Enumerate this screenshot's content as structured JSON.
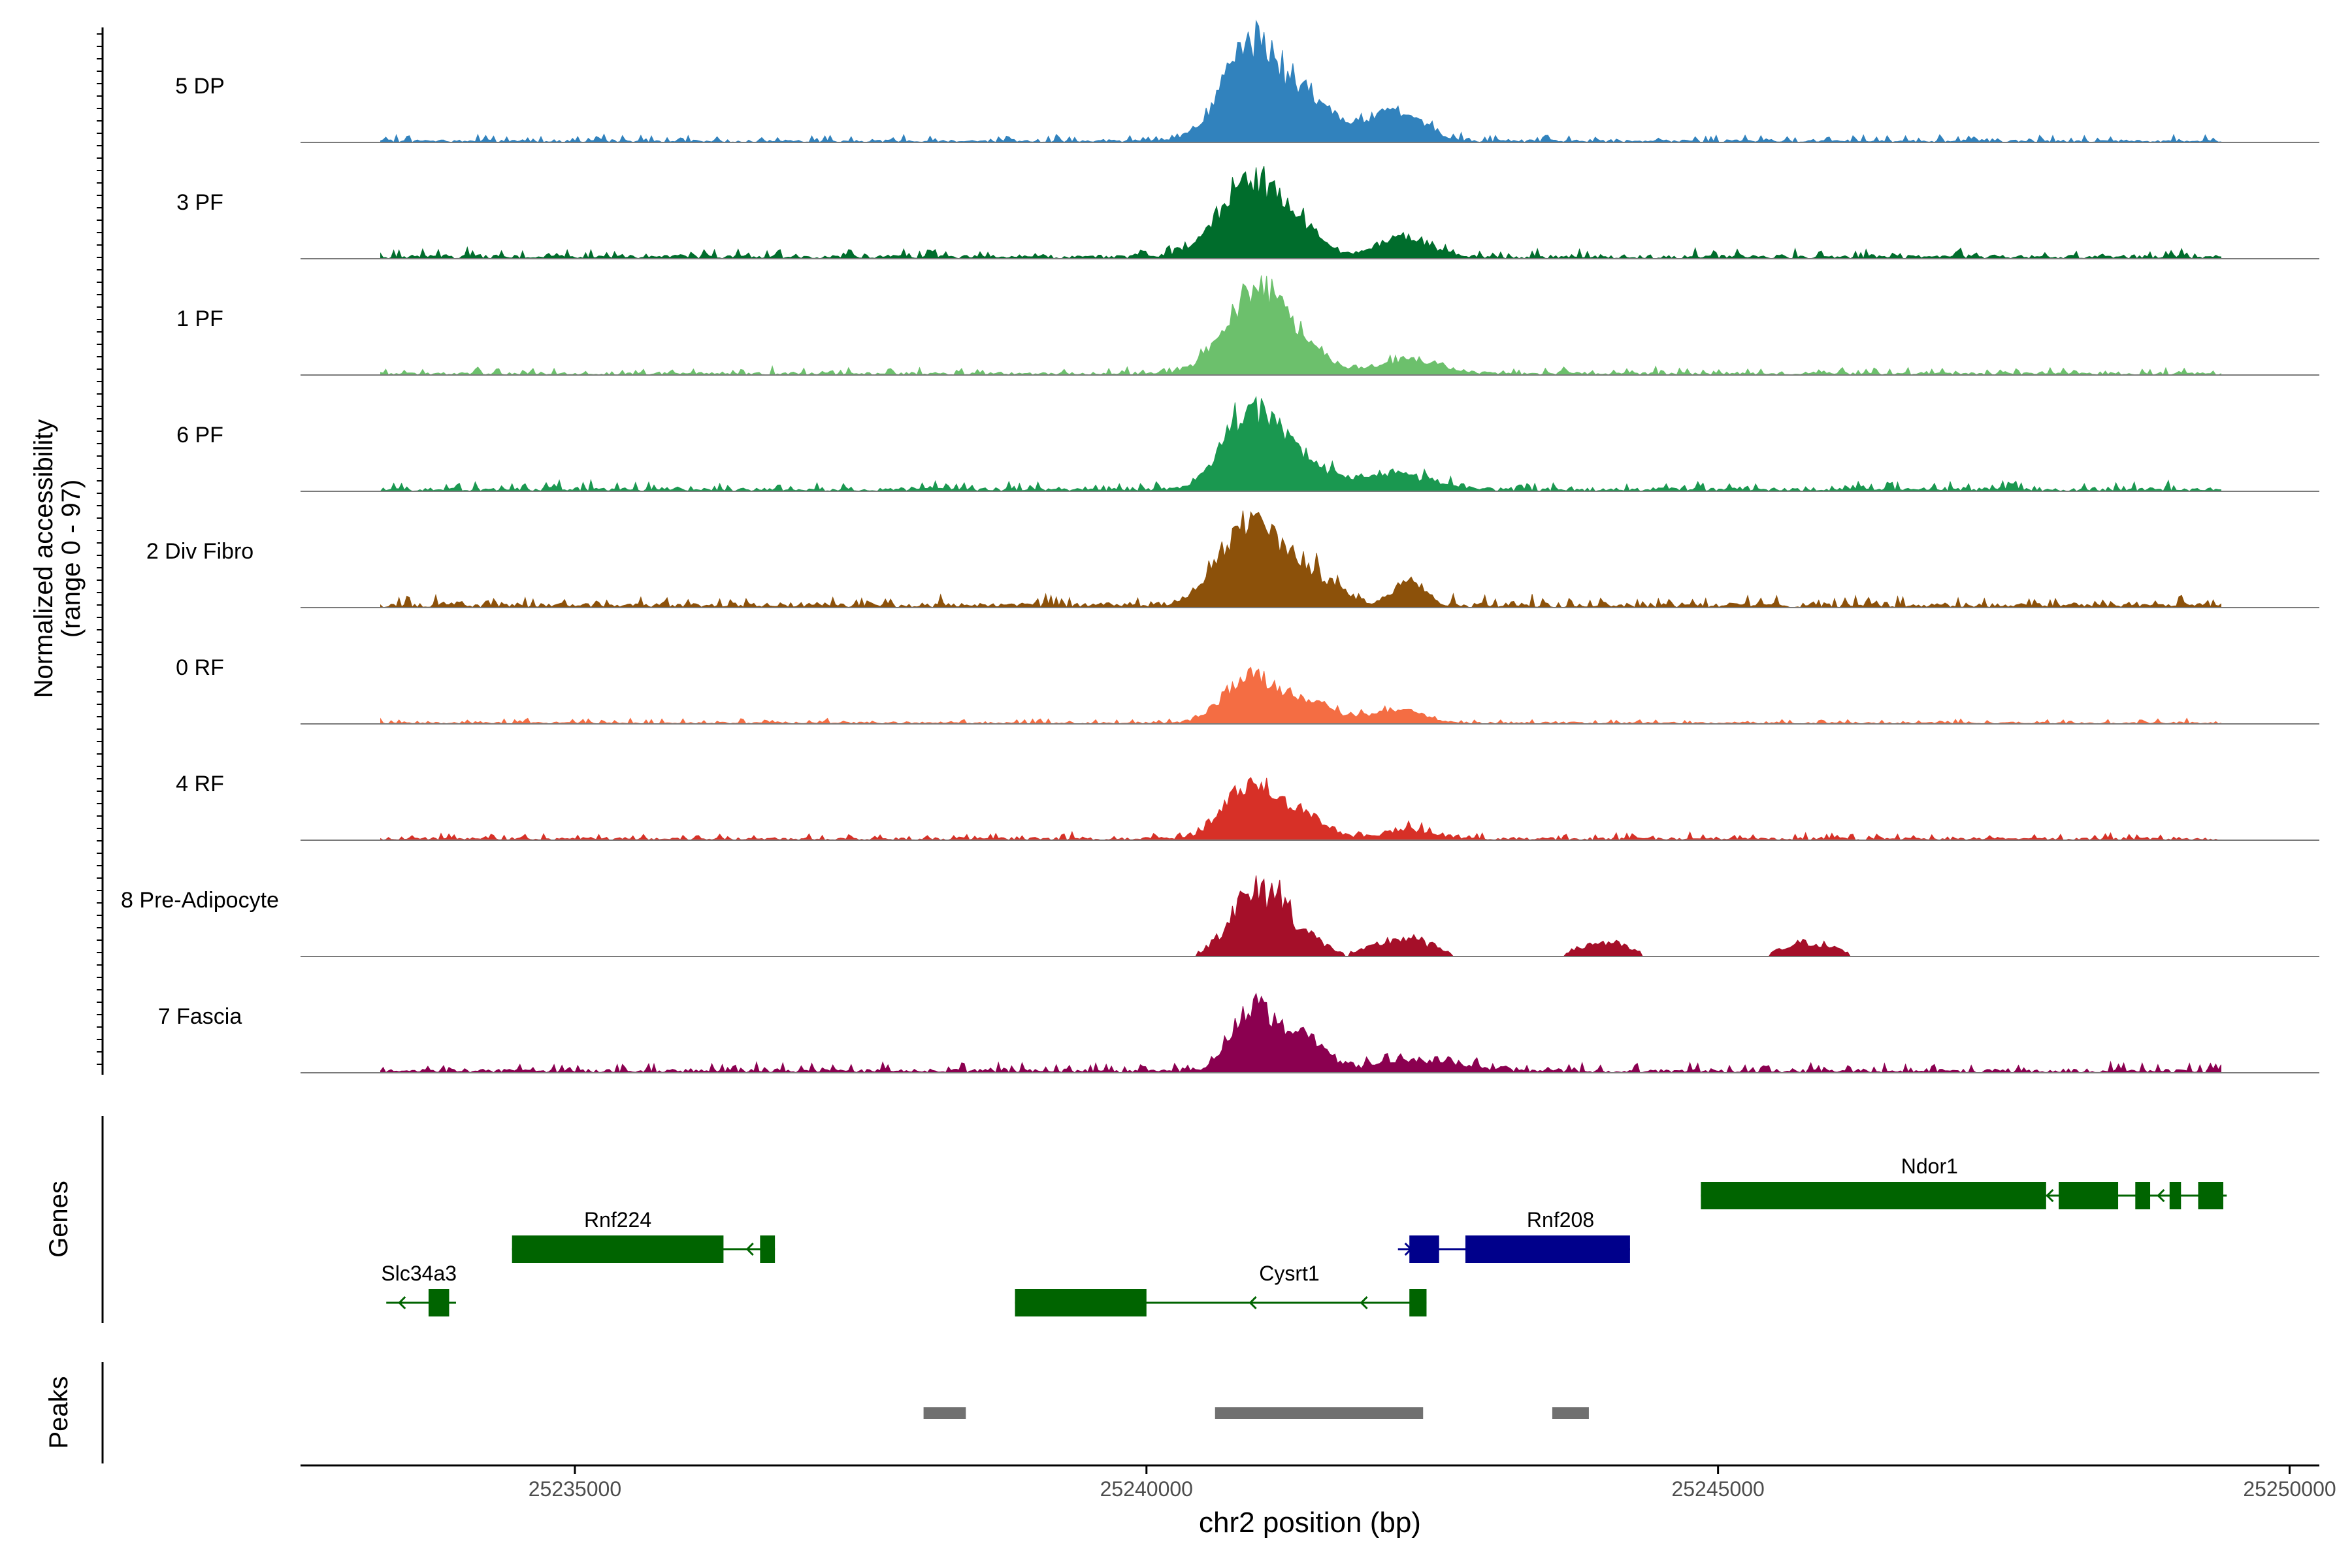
{
  "chart_data": {
    "type": "area",
    "title": "",
    "xlabel": "chr2 position (bp)",
    "xlim": [
      25232600,
      25250260
    ],
    "x_ticks": [
      25235000,
      25240000,
      25245000,
      25250000
    ],
    "x_tick_labels": [
      "25235000",
      "25240000",
      "25245000",
      "25250000"
    ],
    "coverage_panel": {
      "ylabel_line1": "Normalized accessibility",
      "ylabel_line2": "(range 0 - 97)",
      "range": [
        0,
        97
      ],
      "tracks": [
        {
          "name": "5 DP",
          "color": "#3182bd",
          "peaks": [
            [
              25240950,
              88,
              380
            ],
            [
              25241500,
              28,
              250
            ],
            [
              25241950,
              14,
              200
            ],
            [
              25242250,
              23,
              280
            ]
          ],
          "baseline": 3
        },
        {
          "name": "3 PF",
          "color": "#006d2c",
          "peaks": [
            [
              25240900,
              65,
              380
            ],
            [
              25241350,
              20,
              280
            ],
            [
              25242250,
              18,
              300
            ]
          ],
          "baseline": 4
        },
        {
          "name": "1 PF",
          "color": "#6cc06c",
          "peaks": [
            [
              25240970,
              75,
              380
            ],
            [
              25241400,
              12,
              300
            ],
            [
              25242300,
              13,
              350
            ]
          ],
          "baseline": 3
        },
        {
          "name": "6 PF",
          "color": "#1a9850",
          "peaks": [
            [
              25240870,
              58,
              320
            ],
            [
              25241250,
              30,
              380
            ],
            [
              25242150,
              14,
              450
            ]
          ],
          "baseline": 4
        },
        {
          "name": "2 Div Fibro",
          "color": "#8c510a",
          "peaks": [
            [
              25240920,
              75,
              380
            ],
            [
              25241500,
              22,
              300
            ],
            [
              25242300,
              25,
              180
            ]
          ],
          "baseline": 5
        },
        {
          "name": "0 RF",
          "color": "#f46d43",
          "peaks": [
            [
              25240900,
              40,
              320
            ],
            [
              25241400,
              18,
              350
            ],
            [
              25242200,
              12,
              300
            ]
          ],
          "baseline": 2
        },
        {
          "name": "4 RF",
          "color": "#d73027",
          "peaks": [
            [
              25240900,
              48,
              300
            ],
            [
              25241350,
              22,
              300
            ],
            [
              25242300,
              8,
              300
            ]
          ],
          "baseline": 3
        },
        {
          "name": "8 Pre-Adipocyte",
          "color": "#a50f29",
          "sparse": true,
          "peaks": [
            [
              25240850,
              50,
              250
            ],
            [
              25241150,
              50,
              200
            ],
            [
              25241450,
              15,
              200
            ],
            [
              25242250,
              18,
              350
            ],
            [
              25244000,
              14,
              300
            ],
            [
              25245800,
              14,
              300
            ]
          ],
          "baseline": 0
        },
        {
          "name": "7 Fascia",
          "color": "#8b0050",
          "peaks": [
            [
              25240920,
              55,
              250
            ],
            [
              25241350,
              30,
              300
            ],
            [
              25242400,
              10,
              500
            ]
          ],
          "baseline": 4
        }
      ]
    },
    "genes_panel": {
      "ylabel": "Genes",
      "genes": [
        {
          "name": "Slc34a3",
          "strand": "-",
          "color": "#006400",
          "start": 25233350,
          "end": 25233960,
          "row": 3,
          "exons": [
            [
              25233720,
              25233900
            ]
          ]
        },
        {
          "name": "Rnf224",
          "strand": "-",
          "color": "#006400",
          "start": 25234450,
          "end": 25236750,
          "row": 2,
          "exons": [
            [
              25234450,
              25236300
            ],
            [
              25236620,
              25236750
            ]
          ]
        },
        {
          "name": "Cysrt1",
          "strand": "-",
          "color": "#006400",
          "start": 25238850,
          "end": 25242450,
          "row": 3,
          "exons": [
            [
              25238850,
              25240000
            ],
            [
              25242300,
              25242450
            ]
          ]
        },
        {
          "name": "Rnf208",
          "strand": "+",
          "color": "#00008b",
          "start": 25242200,
          "end": 25244230,
          "row": 2,
          "exons": [
            [
              25242300,
              25242560
            ],
            [
              25242790,
              25244230
            ]
          ]
        },
        {
          "name": "Ndor1",
          "strand": "-",
          "color": "#006400",
          "start": 25244850,
          "end": 25249450,
          "row": 1,
          "exons": [
            [
              25244850,
              25247870
            ],
            [
              25247980,
              25248500
            ],
            [
              25248650,
              25248780
            ],
            [
              25248950,
              25249050
            ],
            [
              25249200,
              25249420
            ]
          ]
        }
      ]
    },
    "peaks_panel": {
      "ylabel": "Peaks",
      "color": "#707070",
      "peaks": [
        [
          25238050,
          25238420
        ],
        [
          25240600,
          25242420
        ],
        [
          25243550,
          25243870
        ]
      ]
    }
  }
}
